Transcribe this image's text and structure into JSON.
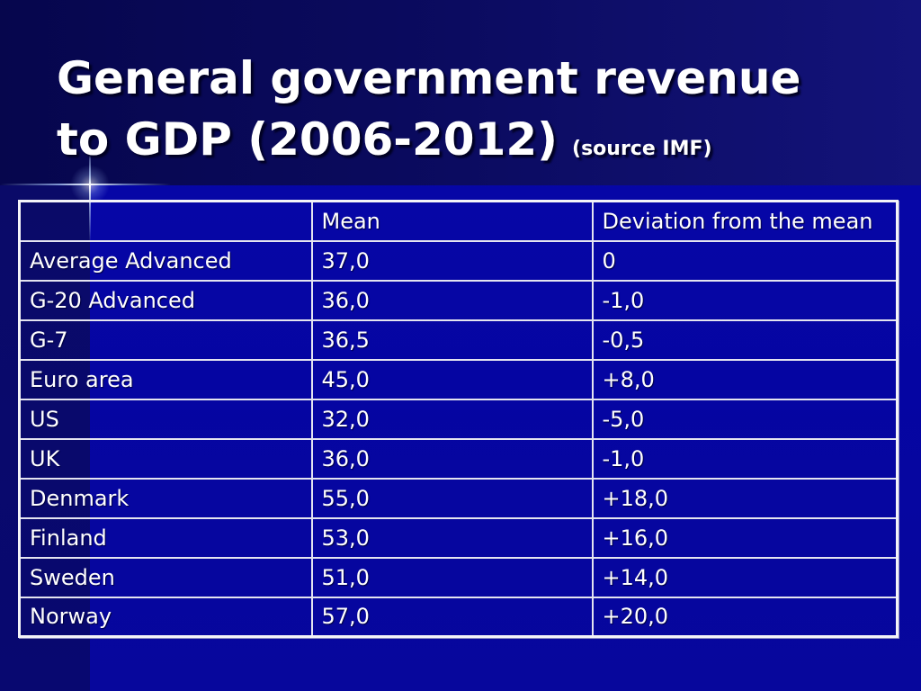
{
  "theme": {
    "background": "#0606a2",
    "text_color": "#ffffff"
  },
  "slide": {
    "title_line1": "General government revenue",
    "title_line2": "to GDP (2006-2012)",
    "title_source": "(source IMF)"
  },
  "table": {
    "headers": {
      "mean": "Mean",
      "deviation": "Deviation from the mean"
    },
    "rows": [
      {
        "country": "Average Advanced",
        "mean": "37,0",
        "deviation": "0"
      },
      {
        "country": "G-20 Advanced",
        "mean": "36,0",
        "deviation": "-1,0"
      },
      {
        "country": "G-7",
        "mean": "36,5",
        "deviation": "-0,5"
      },
      {
        "country": "Euro area",
        "mean": "45,0",
        "deviation": "+8,0"
      },
      {
        "country": "US",
        "mean": "32,0",
        "deviation": "-5,0"
      },
      {
        "country": "UK",
        "mean": "36,0",
        "deviation": "-1,0"
      },
      {
        "country": "Denmark",
        "mean": "55,0",
        "deviation": "+18,0"
      },
      {
        "country": "Finland",
        "mean": "53,0",
        "deviation": "+16,0"
      },
      {
        "country": "Sweden",
        "mean": "51,0",
        "deviation": "+14,0"
      },
      {
        "country": "Norway",
        "mean": "57,0",
        "deviation": "+20,0"
      }
    ]
  }
}
